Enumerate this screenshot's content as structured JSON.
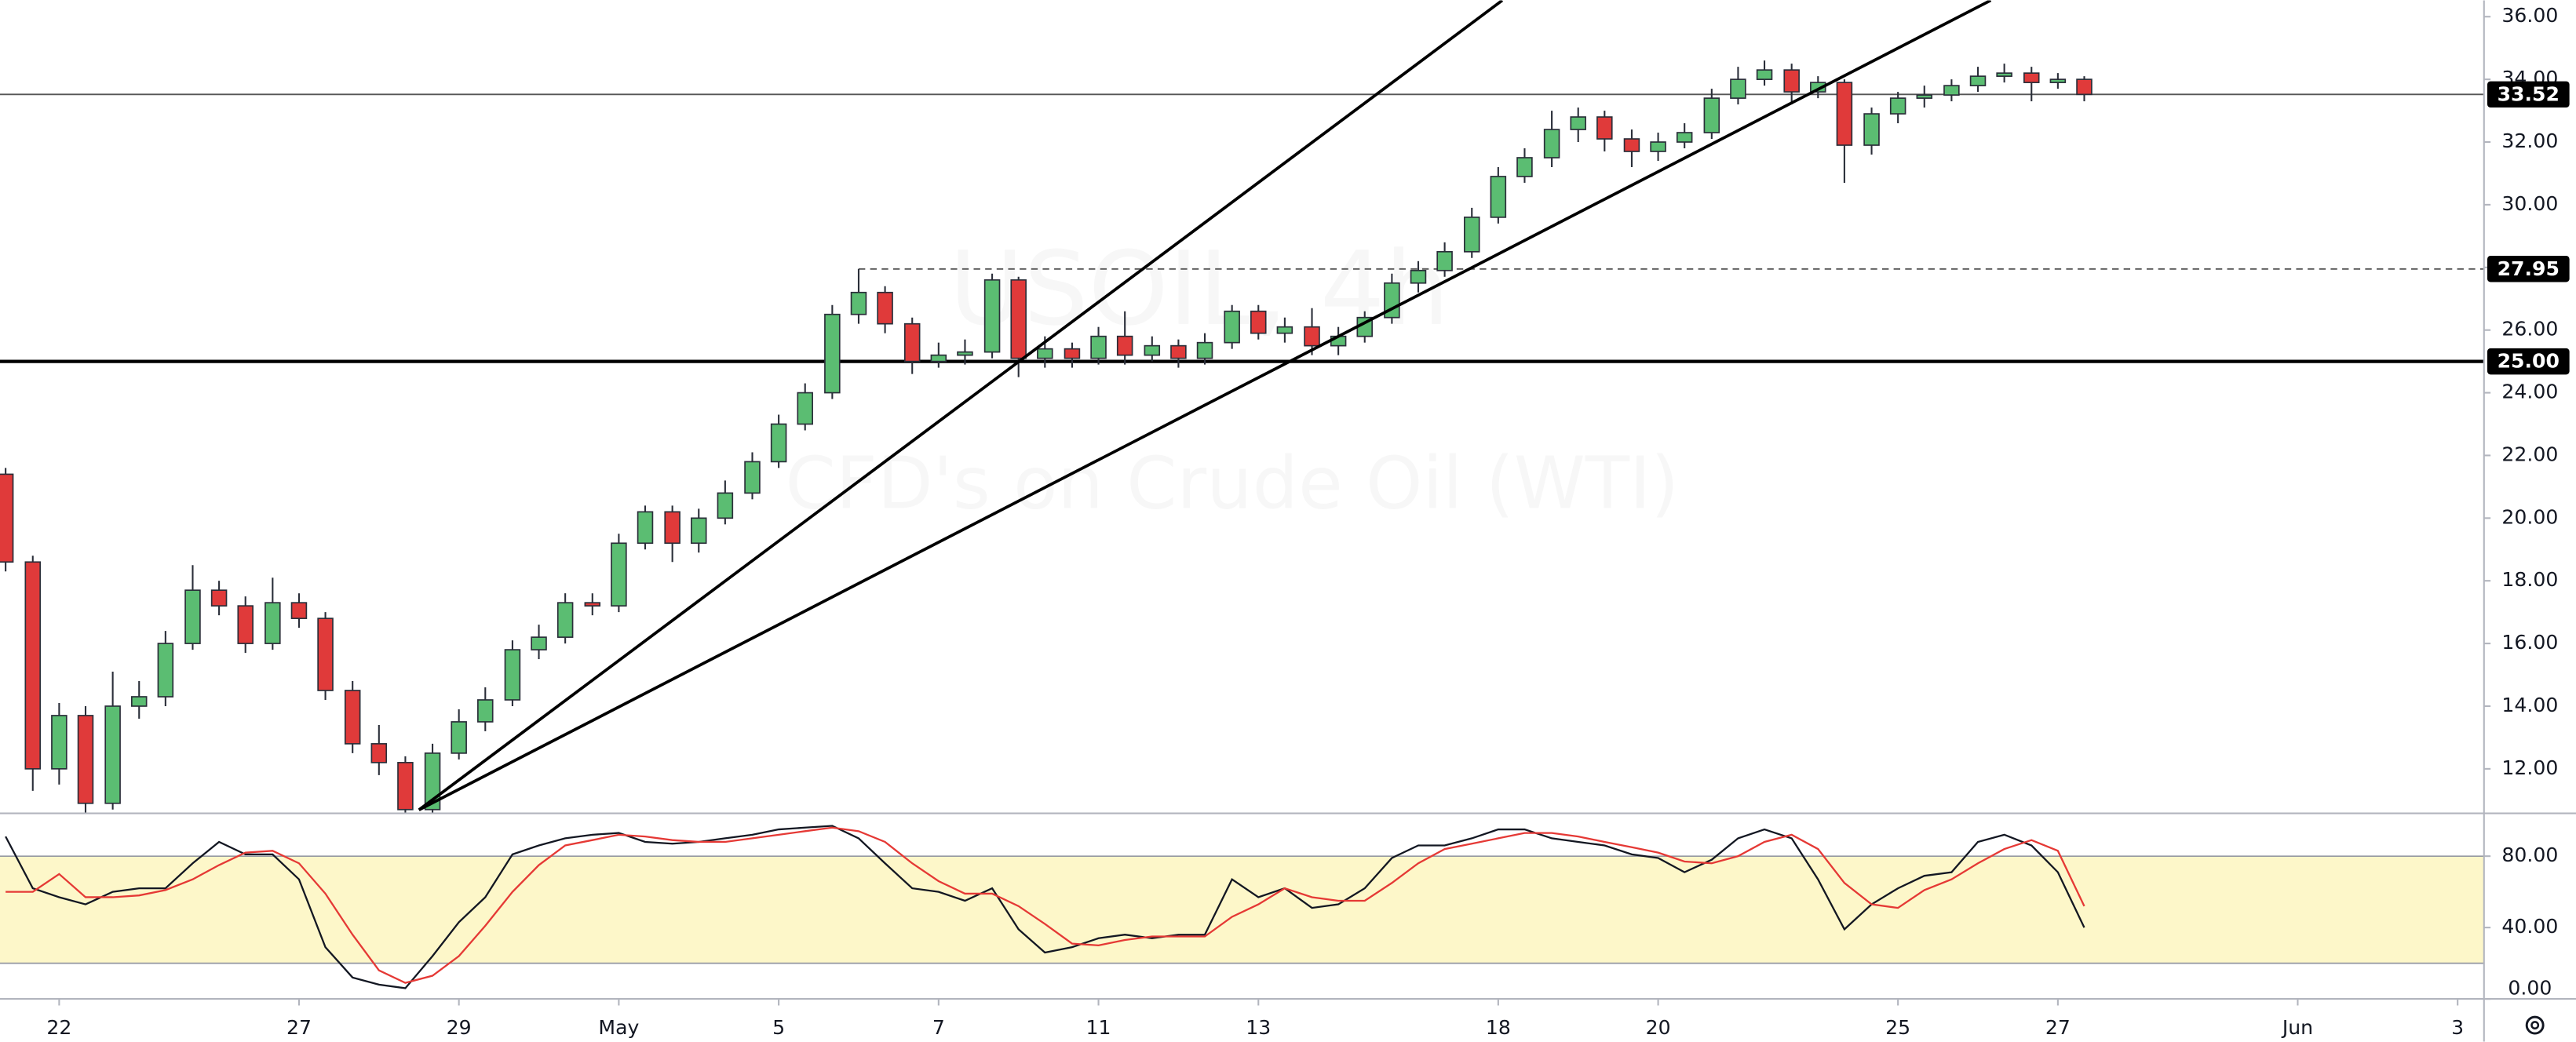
{
  "chart_data": {
    "type": "candlestick",
    "watermark": {
      "symbol": "USOIL, 4h",
      "description": "CFD's on Crude Oil (WTI)"
    },
    "up_color": "#5bbd72",
    "down_color": "#e03a3a",
    "xlim": [
      -0.74,
      30.33
    ],
    "ylim": [
      10.58,
      36.52
    ],
    "xticks": [
      {
        "value": 0,
        "label": "22"
      },
      {
        "value": 3,
        "label": "27"
      },
      {
        "value": 5,
        "label": "29"
      },
      {
        "value": 7,
        "label": "May"
      },
      {
        "value": 9,
        "label": "5"
      },
      {
        "value": 11,
        "label": "7"
      },
      {
        "value": 13,
        "label": "11"
      },
      {
        "value": 15,
        "label": "13"
      },
      {
        "value": 18,
        "label": "18"
      },
      {
        "value": 20,
        "label": "20"
      },
      {
        "value": 23,
        "label": "25"
      },
      {
        "value": 25,
        "label": "27"
      },
      {
        "value": 28,
        "label": "Jun"
      },
      {
        "value": 30,
        "label": "3"
      }
    ],
    "yticks": [
      {
        "value": 12,
        "label": "12.00"
      },
      {
        "value": 14,
        "label": "14.00"
      },
      {
        "value": 16,
        "label": "16.00"
      },
      {
        "value": 18,
        "label": "18.00"
      },
      {
        "value": 20,
        "label": "20.00"
      },
      {
        "value": 22,
        "label": "22.00"
      },
      {
        "value": 24,
        "label": "24.00"
      },
      {
        "value": 26,
        "label": "26.00"
      },
      {
        "value": 28,
        "label": "28.00"
      },
      {
        "value": 30,
        "label": "30.00"
      },
      {
        "value": 32,
        "label": "32.00"
      },
      {
        "value": 34,
        "label": "34.00"
      },
      {
        "value": 36,
        "label": "36.00"
      }
    ],
    "grid": false,
    "x": [
      -0.67,
      -0.33,
      0,
      0.33,
      0.67,
      1,
      1.33,
      1.67,
      2,
      2.33,
      2.67,
      3,
      3.33,
      3.67,
      4,
      4.33,
      4.67,
      5,
      5.33,
      5.67,
      6,
      6.33,
      6.67,
      7,
      7.33,
      7.67,
      8,
      8.33,
      8.67,
      9,
      9.33,
      9.67,
      10,
      10.33,
      10.67,
      11,
      11.33,
      11.67,
      12,
      12.33,
      12.67,
      13,
      13.33,
      13.67,
      14,
      14.33,
      14.67,
      15,
      15.33,
      15.67,
      16,
      16.33,
      16.67,
      17,
      17.33,
      17.67,
      18,
      18.33,
      18.67,
      19,
      19.33,
      19.67,
      20,
      20.33,
      20.67,
      21,
      21.33,
      21.67,
      22,
      22.33,
      22.67,
      23,
      23.33,
      23.67,
      24,
      24.33,
      24.67,
      25,
      25.33
    ],
    "open": [
      21.4,
      18.6,
      12.0,
      13.7,
      10.9,
      14.0,
      14.3,
      16.0,
      17.7,
      17.2,
      16.0,
      17.3,
      16.8,
      14.5,
      12.8,
      12.2,
      10.7,
      12.5,
      13.5,
      14.2,
      15.8,
      16.2,
      17.3,
      17.2,
      19.2,
      20.2,
      19.2,
      20.0,
      20.8,
      21.8,
      23.0,
      24.0,
      26.5,
      27.2,
      26.2,
      25.0,
      25.2,
      25.3,
      27.6,
      25.1,
      25.4,
      25.1,
      25.8,
      25.2,
      25.5,
      25.1,
      25.6,
      26.6,
      25.9,
      26.1,
      25.5,
      25.8,
      26.4,
      27.5,
      27.9,
      28.5,
      29.6,
      30.9,
      31.5,
      32.4,
      32.8,
      32.1,
      31.7,
      32.0,
      32.3,
      33.4,
      34.0,
      34.3,
      33.6,
      33.9,
      31.9,
      32.9,
      33.4,
      33.5,
      33.8,
      34.1,
      34.2,
      33.9,
      34.0
    ],
    "high": [
      21.6,
      18.8,
      14.1,
      14.0,
      15.1,
      14.8,
      16.4,
      18.5,
      18.0,
      17.5,
      18.1,
      17.6,
      17.0,
      14.8,
      13.4,
      12.4,
      12.8,
      13.9,
      14.6,
      16.1,
      16.6,
      17.6,
      17.6,
      19.5,
      20.4,
      20.4,
      20.3,
      21.2,
      22.1,
      23.3,
      24.3,
      26.8,
      27.95,
      27.4,
      26.4,
      25.6,
      25.7,
      27.8,
      27.7,
      25.8,
      25.6,
      26.1,
      26.6,
      25.8,
      25.7,
      25.9,
      26.8,
      26.8,
      26.4,
      26.7,
      26.1,
      26.6,
      27.8,
      28.2,
      28.8,
      29.9,
      31.2,
      31.8,
      33.0,
      33.1,
      33.0,
      32.4,
      32.3,
      32.6,
      33.7,
      34.4,
      34.6,
      34.5,
      34.1,
      34.0,
      33.1,
      33.6,
      33.8,
      34.0,
      34.4,
      34.5,
      34.4,
      34.2,
      34.1
    ],
    "low": [
      18.3,
      11.3,
      11.5,
      10.6,
      10.7,
      13.6,
      14.0,
      15.8,
      16.9,
      15.7,
      15.8,
      16.5,
      14.2,
      12.5,
      11.8,
      10.6,
      10.6,
      12.3,
      13.2,
      14.0,
      15.5,
      16.0,
      16.9,
      17.0,
      19.0,
      18.6,
      18.9,
      19.8,
      20.6,
      21.6,
      22.8,
      23.8,
      26.2,
      25.9,
      24.6,
      24.8,
      24.9,
      25.1,
      24.5,
      24.8,
      24.8,
      24.9,
      24.9,
      25.0,
      24.8,
      24.9,
      25.4,
      25.7,
      25.6,
      25.2,
      25.2,
      25.6,
      26.2,
      27.2,
      27.7,
      28.3,
      29.4,
      30.7,
      31.2,
      32.0,
      31.7,
      31.2,
      31.4,
      31.8,
      32.1,
      33.2,
      33.8,
      33.2,
      33.4,
      30.7,
      31.6,
      32.6,
      33.1,
      33.3,
      33.6,
      33.9,
      33.3,
      33.7,
      33.3
    ],
    "close": [
      18.6,
      12.0,
      13.7,
      10.9,
      14.0,
      14.3,
      16.0,
      17.7,
      17.2,
      16.0,
      17.3,
      16.8,
      14.5,
      12.8,
      12.2,
      10.7,
      12.5,
      13.5,
      14.2,
      15.8,
      16.2,
      17.3,
      17.2,
      19.2,
      20.2,
      19.2,
      20.0,
      20.8,
      21.8,
      23.0,
      24.0,
      26.5,
      27.2,
      26.2,
      25.0,
      25.2,
      25.3,
      27.6,
      25.1,
      25.4,
      25.1,
      25.8,
      25.2,
      25.5,
      25.1,
      25.6,
      26.6,
      25.9,
      26.1,
      25.5,
      25.8,
      26.4,
      27.5,
      27.9,
      28.5,
      29.6,
      30.9,
      31.5,
      32.4,
      32.8,
      32.1,
      31.7,
      32.0,
      32.3,
      33.4,
      34.0,
      34.3,
      33.6,
      33.9,
      31.9,
      32.9,
      33.4,
      33.5,
      33.8,
      34.1,
      34.2,
      33.9,
      34.0,
      33.52
    ],
    "levels": [
      {
        "value": 33.52,
        "label": "33.52",
        "style": "thin"
      },
      {
        "value": 27.95,
        "label": "27.95",
        "style": "dashed",
        "x_start": 10
      },
      {
        "value": 25,
        "label": "25.00",
        "style": "thick"
      }
    ],
    "trendlines": [
      {
        "points": [
          [
            4.5,
            10.69
          ],
          [
            18.05,
            36.52
          ]
        ]
      },
      {
        "points": [
          [
            4.5,
            10.69
          ],
          [
            24.16,
            36.52
          ]
        ]
      }
    ],
    "stochastic": {
      "type": "line",
      "ylim": [
        0,
        104
      ],
      "yticks": [
        {
          "value": 0,
          "label": "0.00"
        },
        {
          "value": 40,
          "label": "40.00"
        },
        {
          "value": 80,
          "label": "80.00"
        }
      ],
      "band": [
        20,
        80
      ],
      "band_color": "#fdf7c9",
      "series": [
        {
          "color": "#131722",
          "values": [
            91,
            62,
            57,
            53,
            60,
            62,
            62,
            76,
            88,
            81,
            81,
            67,
            29,
            12,
            8,
            6,
            24,
            43,
            57,
            81,
            86,
            90,
            92,
            93,
            88,
            87,
            88,
            90,
            92,
            95,
            96,
            97,
            90,
            76,
            62,
            60,
            55,
            62,
            39,
            26,
            29,
            34,
            36,
            34,
            36,
            36,
            67,
            57,
            62,
            51,
            53,
            62,
            79,
            86,
            86,
            90,
            95,
            95,
            90,
            88,
            86,
            81,
            79,
            71,
            78,
            90,
            95,
            90,
            67,
            39,
            53,
            62,
            69,
            71,
            88,
            92,
            86,
            71,
            40
          ]
        },
        {
          "color": "#e53935",
          "values": [
            60,
            60,
            70,
            57,
            57,
            58,
            61,
            67,
            75,
            82,
            83,
            76,
            59,
            36,
            16,
            9,
            13,
            24,
            41,
            60,
            75,
            86,
            89,
            92,
            91,
            89,
            88,
            88,
            90,
            92,
            94,
            96,
            94,
            88,
            76,
            66,
            59,
            59,
            52,
            42,
            31,
            30,
            33,
            35,
            35,
            35,
            46,
            53,
            62,
            57,
            55,
            55,
            65,
            76,
            84,
            87,
            90,
            93,
            93,
            91,
            88,
            85,
            82,
            77,
            76,
            80,
            88,
            92,
            84,
            65,
            53,
            51,
            61,
            67,
            76,
            84,
            89,
            83,
            52
          ]
        }
      ]
    }
  }
}
